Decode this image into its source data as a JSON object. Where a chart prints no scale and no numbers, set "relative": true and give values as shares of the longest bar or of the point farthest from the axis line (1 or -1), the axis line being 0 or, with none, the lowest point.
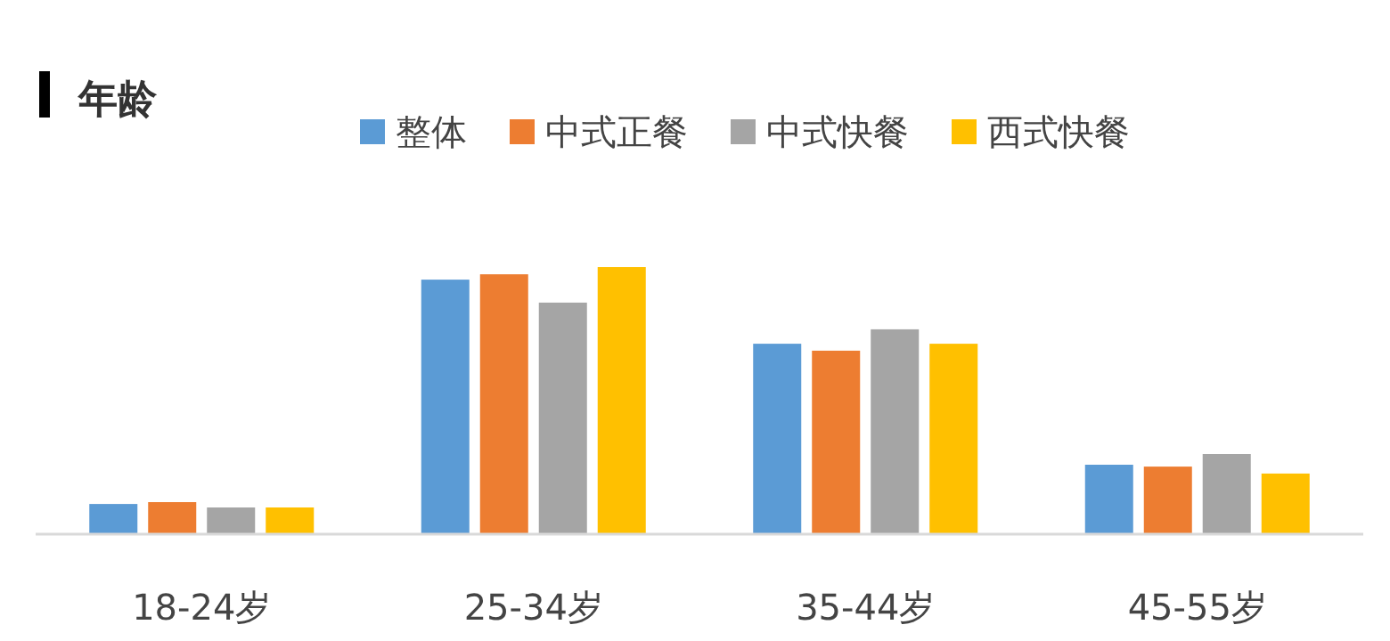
{
  "chart_data": {
    "type": "bar",
    "title": "年龄",
    "relative": true,
    "legend": "top",
    "categories": [
      "18-24岁",
      "25-34岁",
      "35-44岁",
      "45-55岁"
    ],
    "series": [
      {
        "name": "整体",
        "color": "#5b9bd5",
        "values": [
          0.113,
          0.953,
          0.713,
          0.26
        ]
      },
      {
        "name": "中式正餐",
        "color": "#ed7d31",
        "values": [
          0.12,
          0.973,
          0.687,
          0.253
        ]
      },
      {
        "name": "中式快餐",
        "color": "#a5a5a5",
        "values": [
          0.1,
          0.867,
          0.767,
          0.3
        ]
      },
      {
        "name": "西式快餐",
        "color": "#ffc000",
        "values": [
          0.1,
          1,
          0.713,
          0.227
        ]
      }
    ]
  }
}
